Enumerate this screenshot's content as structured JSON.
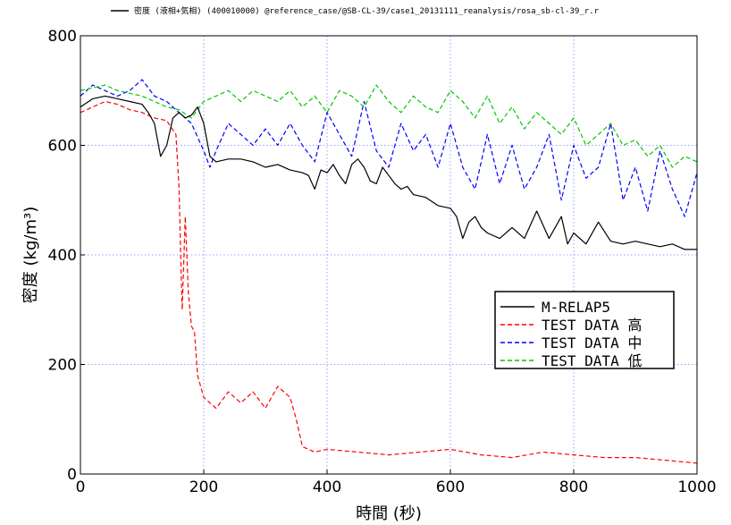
{
  "chart_data": {
    "type": "line",
    "caption": "密度 (液相+気相) (400010000) @reference_case/@SB-CL-39/case1_20131111_reanalysis/rosa_sb-cl-39_r.r",
    "xlabel": "時間 (秒)",
    "ylabel": "密度 (kg/m³)",
    "xlim": [
      0,
      1000
    ],
    "ylim": [
      0,
      800
    ],
    "xticks": [
      "0",
      "200",
      "400",
      "600",
      "800",
      "1000"
    ],
    "yticks": [
      "0",
      "200",
      "400",
      "600",
      "800"
    ],
    "grid": true,
    "legend_position": "center-right",
    "series": [
      {
        "name": "M-RELAP5",
        "color": "#000000",
        "style": "solid",
        "x": [
          0,
          20,
          40,
          60,
          80,
          100,
          110,
          120,
          130,
          140,
          150,
          160,
          170,
          180,
          190,
          200,
          210,
          220,
          240,
          260,
          280,
          300,
          320,
          340,
          360,
          370,
          380,
          390,
          400,
          410,
          420,
          430,
          440,
          450,
          460,
          470,
          480,
          490,
          500,
          510,
          520,
          530,
          540,
          560,
          580,
          600,
          610,
          620,
          630,
          640,
          650,
          660,
          680,
          700,
          720,
          740,
          760,
          780,
          790,
          800,
          820,
          840,
          860,
          880,
          900,
          920,
          940,
          960,
          980,
          1000
        ],
        "y": [
          670,
          685,
          690,
          685,
          680,
          675,
          660,
          640,
          580,
          600,
          650,
          660,
          650,
          655,
          670,
          640,
          580,
          570,
          575,
          575,
          570,
          560,
          565,
          555,
          550,
          545,
          520,
          555,
          550,
          565,
          545,
          530,
          565,
          575,
          560,
          535,
          530,
          560,
          545,
          530,
          520,
          525,
          510,
          505,
          490,
          485,
          470,
          430,
          460,
          470,
          450,
          440,
          430,
          450,
          430,
          480,
          430,
          470,
          420,
          440,
          420,
          460,
          425,
          420,
          425,
          420,
          415,
          420,
          410,
          410
        ]
      },
      {
        "name": "TEST DATA 高",
        "color": "#ff0000",
        "style": "dashed",
        "x": [
          0,
          20,
          40,
          60,
          80,
          100,
          120,
          140,
          155,
          160,
          163,
          165,
          170,
          175,
          180,
          185,
          190,
          200,
          220,
          240,
          260,
          280,
          300,
          320,
          340,
          350,
          360,
          380,
          400,
          450,
          500,
          550,
          600,
          650,
          700,
          750,
          800,
          850,
          900,
          950,
          1000
        ],
        "y": [
          660,
          670,
          680,
          675,
          665,
          660,
          650,
          645,
          620,
          520,
          380,
          300,
          470,
          330,
          270,
          260,
          180,
          140,
          120,
          150,
          130,
          150,
          120,
          160,
          140,
          100,
          50,
          40,
          45,
          40,
          35,
          40,
          45,
          35,
          30,
          40,
          35,
          30,
          30,
          25,
          20
        ]
      },
      {
        "name": "TEST DATA 中",
        "color": "#0000ff",
        "style": "dashed",
        "x": [
          0,
          20,
          40,
          60,
          80,
          100,
          120,
          140,
          160,
          180,
          200,
          210,
          220,
          240,
          260,
          280,
          300,
          320,
          340,
          360,
          380,
          400,
          420,
          440,
          460,
          480,
          500,
          520,
          540,
          560,
          580,
          600,
          620,
          640,
          660,
          680,
          700,
          720,
          740,
          760,
          780,
          800,
          820,
          840,
          860,
          880,
          900,
          920,
          940,
          960,
          980,
          1000
        ],
        "y": [
          690,
          710,
          700,
          690,
          700,
          720,
          690,
          680,
          660,
          640,
          590,
          560,
          590,
          640,
          620,
          600,
          630,
          600,
          640,
          600,
          570,
          660,
          620,
          580,
          680,
          590,
          560,
          640,
          590,
          620,
          560,
          640,
          560,
          520,
          620,
          530,
          600,
          520,
          560,
          620,
          500,
          600,
          540,
          560,
          640,
          500,
          560,
          480,
          590,
          520,
          470,
          550
        ]
      },
      {
        "name": "TEST DATA 低",
        "color": "#00c800",
        "style": "dashed",
        "x": [
          0,
          20,
          40,
          60,
          80,
          100,
          120,
          140,
          160,
          180,
          200,
          220,
          240,
          260,
          280,
          300,
          320,
          340,
          360,
          380,
          400,
          420,
          440,
          460,
          480,
          500,
          520,
          540,
          560,
          580,
          600,
          620,
          640,
          660,
          680,
          700,
          720,
          740,
          760,
          780,
          800,
          820,
          840,
          860,
          880,
          900,
          920,
          940,
          960,
          980,
          1000
        ],
        "y": [
          700,
          705,
          710,
          700,
          695,
          690,
          680,
          670,
          665,
          650,
          680,
          690,
          700,
          680,
          700,
          690,
          680,
          700,
          670,
          690,
          660,
          700,
          690,
          670,
          710,
          680,
          660,
          690,
          670,
          660,
          700,
          680,
          650,
          690,
          640,
          670,
          630,
          660,
          640,
          620,
          650,
          600,
          620,
          640,
          600,
          610,
          580,
          600,
          560,
          580,
          570
        ]
      }
    ]
  }
}
